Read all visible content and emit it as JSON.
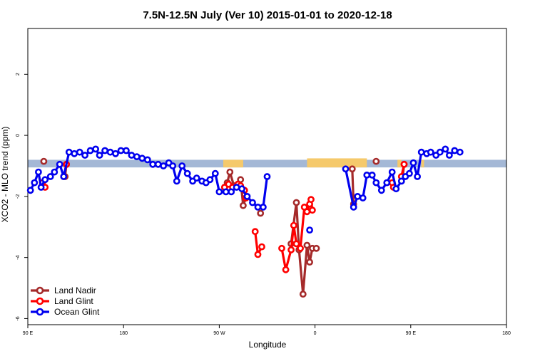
{
  "chart_data": {
    "type": "line",
    "title": "7.5N-12.5N July (Ver 10)   2015-01-01 to 2020-12-18",
    "xlabel": "Longitude",
    "ylabel": "XCO2 - MLO trend (ppm)",
    "xlim": [
      -90,
      270
    ],
    "ylim": [
      -6.2,
      3.5
    ],
    "x_ticks": [
      {
        "value": -90,
        "label": "90 E"
      },
      {
        "value": -18,
        "label": "180"
      },
      {
        "value": 54,
        "label": "90 W"
      },
      {
        "value": 126,
        "label": "0"
      },
      {
        "value": 198,
        "label": "90 E"
      },
      {
        "value": 270,
        "label": "180"
      }
    ],
    "y_ticks": [
      {
        "value": 2,
        "label": "2"
      },
      {
        "value": 0,
        "label": "0"
      },
      {
        "value": -2,
        "label": "-2"
      },
      {
        "value": -4,
        "label": "-4"
      },
      {
        "value": -6,
        "label": "-6"
      }
    ],
    "band": {
      "ymin": -1.05,
      "ymax": -0.8,
      "color": "#a4b8d6"
    },
    "land_patches": [
      {
        "x1": 57,
        "x2": 72,
        "color": "#f5c96b"
      },
      {
        "x1": 120,
        "x2": 165,
        "color": "#f5c96b"
      },
      {
        "x1": 188,
        "x2": 191,
        "color": "#f5c96b"
      },
      {
        "x1": 206,
        "x2": 208,
        "color": "#f5c96b"
      }
    ],
    "legend": {
      "position": "bottom-left",
      "entries": [
        "Land Nadir",
        "Land Glint",
        "Ocean Glint"
      ]
    },
    "series": [
      {
        "name": "Land Nadir",
        "color": "#a52a2a",
        "segments": [
          [
            [
              -78,
              -0.85
            ]
          ],
          [
            [
              -62,
              -1.35
            ],
            [
              -61,
              -0.95
            ]
          ],
          [
            [
              58,
              -1.7
            ],
            [
              60,
              -1.55
            ],
            [
              62,
              -1.2
            ],
            [
              65,
              -1.65
            ],
            [
              70,
              -1.45
            ],
            [
              72,
              -2.3
            ],
            [
              74,
              -2.05
            ]
          ],
          [
            [
              85,
              -2.55
            ]
          ],
          [
            [
              108,
              -3.55
            ],
            [
              112,
              -2.2
            ],
            [
              114,
              -3.75
            ],
            [
              117,
              -5.2
            ],
            [
              120,
              -3.6
            ],
            [
              122,
              -4.15
            ],
            [
              124,
              -3.7
            ],
            [
              127,
              -3.7
            ]
          ],
          [
            [
              154,
              -1.1
            ],
            [
              155,
              -2.25
            ]
          ],
          [
            [
              172,
              -0.85
            ]
          ],
          [
            [
              192,
              -1.35
            ],
            [
              193,
              -0.95
            ]
          ]
        ]
      },
      {
        "name": "Land Glint",
        "color": "#ff0000",
        "segments": [
          [
            [
              -79,
              -1.55
            ],
            [
              -77,
              -1.7
            ]
          ],
          [
            [
              -63,
              -1.35
            ],
            [
              -61,
              -0.95
            ]
          ],
          [
            [
              58,
              -1.7
            ],
            [
              61,
              -1.6
            ],
            [
              64,
              -1.7
            ],
            [
              68,
              -1.6
            ],
            [
              70,
              -1.65
            ],
            [
              73,
              -1.8
            ],
            [
              74,
              -2.05
            ]
          ],
          [
            [
              81,
              -3.15
            ],
            [
              83,
              -3.9
            ],
            [
              86,
              -3.65
            ]
          ],
          [
            [
              101,
              -3.7
            ],
            [
              104,
              -4.4
            ],
            [
              108,
              -3.75
            ],
            [
              110,
              -2.95
            ],
            [
              112,
              -3.55
            ],
            [
              115,
              -3.7
            ],
            [
              118,
              -2.35
            ],
            [
              120,
              -2.5
            ],
            [
              122,
              -2.25
            ],
            [
              123,
              -2.1
            ],
            [
              124,
              -2.45
            ]
          ],
          [
            [
              184,
              -1.55
            ],
            [
              185,
              -1.7
            ]
          ],
          [
            [
              191,
              -1.35
            ],
            [
              193,
              -0.95
            ]
          ]
        ]
      },
      {
        "name": "Ocean Glint",
        "color": "#0000ee",
        "segments": [
          [
            [
              -88,
              -1.8
            ],
            [
              -85,
              -1.55
            ],
            [
              -82,
              -1.2
            ],
            [
              -80,
              -1.7
            ],
            [
              -77,
              -1.45
            ],
            [
              -73,
              -1.35
            ],
            [
              -70,
              -1.2
            ],
            [
              -66,
              -0.95
            ],
            [
              -63,
              -1.35
            ],
            [
              -59,
              -0.55
            ],
            [
              -55,
              -0.6
            ],
            [
              -51,
              -0.55
            ],
            [
              -47,
              -0.65
            ],
            [
              -43,
              -0.5
            ],
            [
              -39,
              -0.45
            ],
            [
              -36,
              -0.65
            ],
            [
              -32,
              -0.5
            ],
            [
              -28,
              -0.55
            ],
            [
              -24,
              -0.6
            ],
            [
              -20,
              -0.5
            ],
            [
              -16,
              -0.5
            ],
            [
              -12,
              -0.65
            ],
            [
              -8,
              -0.7
            ],
            [
              -4,
              -0.75
            ],
            [
              0,
              -0.8
            ],
            [
              4,
              -0.95
            ],
            [
              8,
              -0.95
            ],
            [
              12,
              -1.0
            ],
            [
              16,
              -0.9
            ],
            [
              19,
              -1.0
            ],
            [
              22,
              -1.5
            ],
            [
              26,
              -1.0
            ],
            [
              30,
              -1.25
            ],
            [
              34,
              -1.5
            ],
            [
              37,
              -1.4
            ],
            [
              41,
              -1.5
            ],
            [
              44,
              -1.55
            ],
            [
              47,
              -1.45
            ],
            [
              51,
              -1.25
            ],
            [
              54,
              -1.85
            ],
            [
              59,
              -1.85
            ],
            [
              63,
              -1.85
            ],
            [
              67,
              -1.7
            ],
            [
              71,
              -1.75
            ],
            [
              75,
              -2.0
            ],
            [
              79,
              -2.2
            ],
            [
              83,
              -2.35
            ],
            [
              87,
              -2.35
            ],
            [
              90,
              -1.35
            ]
          ],
          [
            [
              122,
              -3.1
            ]
          ],
          [
            [
              149,
              -1.1
            ],
            [
              155,
              -2.35
            ],
            [
              158,
              -2.0
            ],
            [
              162,
              -2.05
            ],
            [
              165,
              -1.3
            ],
            [
              169,
              -1.3
            ],
            [
              172,
              -1.55
            ],
            [
              176,
              -1.8
            ],
            [
              180,
              -1.55
            ],
            [
              184,
              -1.2
            ],
            [
              187,
              -1.75
            ],
            [
              191,
              -1.5
            ],
            [
              194,
              -1.35
            ],
            [
              197,
              -1.25
            ],
            [
              200,
              -0.9
            ],
            [
              203,
              -1.35
            ],
            [
              206,
              -0.55
            ],
            [
              210,
              -0.6
            ],
            [
              213,
              -0.55
            ],
            [
              217,
              -0.65
            ],
            [
              220,
              -0.55
            ],
            [
              224,
              -0.45
            ],
            [
              227,
              -0.65
            ],
            [
              231,
              -0.5
            ],
            [
              235,
              -0.55
            ]
          ]
        ]
      }
    ]
  }
}
